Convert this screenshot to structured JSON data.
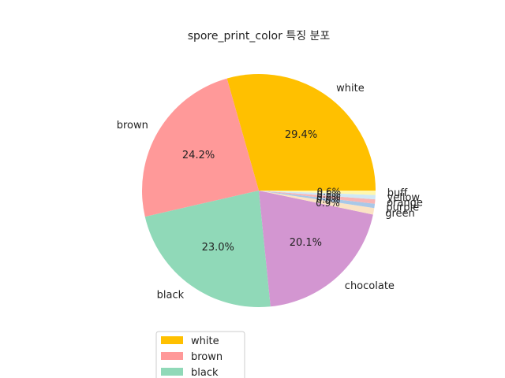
{
  "chart_data": {
    "type": "pie",
    "title": "spore_print_color 특징 분포",
    "slices": [
      {
        "label": "white",
        "value": 29.4,
        "pct_label": "29.4%",
        "color": "#FFC000"
      },
      {
        "label": "brown",
        "value": 24.2,
        "pct_label": "24.2%",
        "color": "#FF9999"
      },
      {
        "label": "black",
        "value": 23.0,
        "pct_label": "23.0%",
        "color": "#90D9B8"
      },
      {
        "label": "chocolate",
        "value": 20.1,
        "pct_label": "20.1%",
        "color": "#D396D1"
      },
      {
        "label": "green",
        "value": 0.9,
        "pct_label": "0.9%",
        "color": "#FBE3C4"
      },
      {
        "label": "purple",
        "value": 0.6,
        "pct_label": "0.6%",
        "color": "#A9C8E8"
      },
      {
        "label": "orange",
        "value": 0.6,
        "pct_label": "0.6%",
        "color": "#F7B5B5"
      },
      {
        "label": "yellow",
        "value": 0.6,
        "pct_label": "0.6%",
        "color": "#D0E8F6"
      },
      {
        "label": "buff",
        "value": 0.6,
        "pct_label": "0.6%",
        "color": "#FFF7AE"
      }
    ],
    "legend": {
      "placement": "bottom-center",
      "entries": [
        "white",
        "brown",
        "black"
      ]
    }
  }
}
